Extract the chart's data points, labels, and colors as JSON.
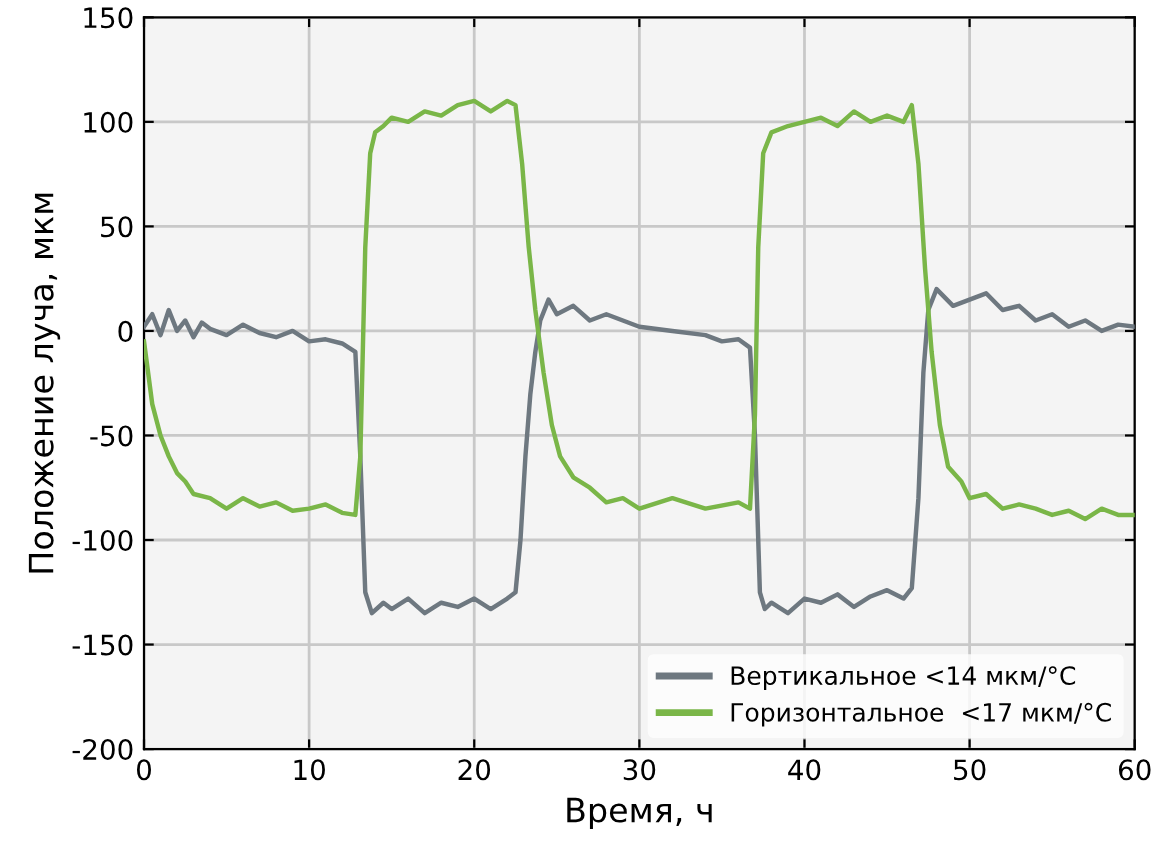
{
  "chart_data": {
    "type": "line",
    "xlabel": "Время, ч",
    "ylabel": "Положение луча, мкм",
    "xlim": [
      0,
      60
    ],
    "ylim": [
      -200,
      150
    ],
    "xticks": [
      0,
      10,
      20,
      30,
      40,
      50,
      60
    ],
    "yticks": [
      -200,
      -150,
      -100,
      -50,
      0,
      50,
      100,
      150
    ],
    "grid": true,
    "legend": "bottom right",
    "line_style": "solid",
    "marker": "none",
    "series": [
      {
        "name": "Вертикальное <14 мкм/°C",
        "color": "#6e7880",
        "x": [
          0,
          0.5,
          1,
          1.5,
          2,
          2.5,
          3,
          3.5,
          4,
          5,
          6,
          7,
          8,
          9,
          10,
          11,
          12,
          12.8,
          13.1,
          13.4,
          13.8,
          14.5,
          15,
          16,
          17,
          18,
          19,
          20,
          21,
          22,
          22.5,
          22.8,
          23.1,
          23.4,
          23.7,
          24,
          24.5,
          25,
          26,
          27,
          28,
          30,
          32,
          34,
          35,
          36,
          36.7,
          37,
          37.3,
          37.6,
          38,
          39,
          40,
          41,
          42,
          43,
          44,
          45,
          46,
          46.5,
          46.9,
          47.2,
          47.5,
          48,
          49,
          50,
          51,
          52,
          53,
          54,
          55,
          56,
          57,
          58,
          59,
          60
        ],
        "values": [
          2,
          8,
          -2,
          10,
          0,
          5,
          -3,
          4,
          1,
          -2,
          3,
          -1,
          -3,
          0,
          -5,
          -4,
          -6,
          -10,
          -60,
          -125,
          -135,
          -130,
          -133,
          -128,
          -135,
          -130,
          -132,
          -128,
          -133,
          -128,
          -125,
          -100,
          -60,
          -30,
          -10,
          5,
          15,
          8,
          12,
          5,
          8,
          2,
          0,
          -2,
          -5,
          -4,
          -8,
          -50,
          -125,
          -133,
          -130,
          -135,
          -128,
          -130,
          -126,
          -132,
          -127,
          -124,
          -128,
          -123,
          -80,
          -20,
          10,
          20,
          12,
          15,
          18,
          10,
          12,
          5,
          8,
          2,
          5,
          0,
          3,
          2
        ]
      },
      {
        "name": "Горизонтальное  <17 мкм/°C",
        "color": "#7ab648",
        "x": [
          0,
          0.5,
          1,
          1.5,
          2,
          2.5,
          3,
          4,
          5,
          6,
          7,
          8,
          9,
          10,
          11,
          12,
          12.8,
          13.1,
          13.4,
          13.7,
          14,
          14.5,
          15,
          16,
          17,
          18,
          19,
          20,
          21,
          22,
          22.5,
          22.9,
          23.3,
          23.7,
          24.2,
          24.7,
          25.2,
          26,
          27,
          28,
          29,
          30,
          32,
          34,
          36,
          36.7,
          37,
          37.2,
          37.5,
          38,
          39,
          40,
          41,
          42,
          43,
          44,
          45,
          46,
          46.5,
          46.9,
          47.3,
          47.7,
          48.2,
          48.7,
          49.5,
          50,
          51,
          52,
          53,
          54,
          55,
          56,
          57,
          58,
          59,
          60
        ],
        "values": [
          -5,
          -35,
          -50,
          -60,
          -68,
          -72,
          -78,
          -80,
          -85,
          -80,
          -84,
          -82,
          -86,
          -85,
          -83,
          -87,
          -88,
          -60,
          40,
          85,
          95,
          98,
          102,
          100,
          105,
          103,
          108,
          110,
          105,
          110,
          108,
          80,
          40,
          10,
          -20,
          -45,
          -60,
          -70,
          -75,
          -82,
          -80,
          -85,
          -80,
          -85,
          -82,
          -85,
          -40,
          40,
          85,
          95,
          98,
          100,
          102,
          98,
          105,
          100,
          103,
          100,
          108,
          80,
          30,
          -10,
          -45,
          -65,
          -72,
          -80,
          -78,
          -85,
          -83,
          -85,
          -88,
          -86,
          -90,
          -85,
          -88,
          -88
        ]
      }
    ]
  }
}
